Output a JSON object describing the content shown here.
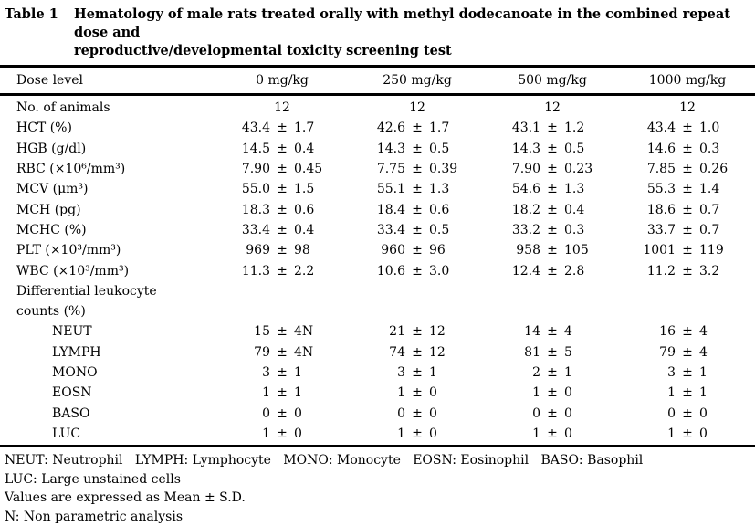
{
  "title": {
    "label": "Table 1",
    "line1": "Hematology of male rats treated orally with methyl dodecanoate in the combined repeat dose and",
    "line2": "reproductive/developmental toxicity screening test"
  },
  "table": {
    "pm_symbol": "±",
    "header": {
      "label": "Dose level",
      "columns": [
        "0 mg/kg",
        "250 mg/kg",
        "500 mg/kg",
        "1000 mg/kg"
      ]
    },
    "rows": [
      {
        "label": "No. of animals",
        "indent": 0,
        "type": "single",
        "values": [
          "12",
          "12",
          "12",
          "12"
        ]
      },
      {
        "label": "HCT (%)",
        "indent": 0,
        "type": "pm",
        "values": [
          [
            "43.4",
            "1.7"
          ],
          [
            "42.6",
            "1.7"
          ],
          [
            "43.1",
            "1.2"
          ],
          [
            "43.4",
            "1.0"
          ]
        ]
      },
      {
        "label": "HGB (g/dl)",
        "indent": 0,
        "type": "pm",
        "values": [
          [
            "14.5",
            "0.4"
          ],
          [
            "14.3",
            "0.5"
          ],
          [
            "14.3",
            "0.5"
          ],
          [
            "14.6",
            "0.3"
          ]
        ]
      },
      {
        "label": "RBC (×10⁶/mm³)",
        "indent": 0,
        "type": "pm",
        "values": [
          [
            "7.90",
            "0.45"
          ],
          [
            "7.75",
            "0.39"
          ],
          [
            "7.90",
            "0.23"
          ],
          [
            "7.85",
            "0.26"
          ]
        ]
      },
      {
        "label": "MCV (μm³)",
        "indent": 0,
        "type": "pm",
        "values": [
          [
            "55.0",
            "1.5"
          ],
          [
            "55.1",
            "1.3"
          ],
          [
            "54.6",
            "1.3"
          ],
          [
            "55.3",
            "1.4"
          ]
        ]
      },
      {
        "label": "MCH (pg)",
        "indent": 0,
        "type": "pm",
        "values": [
          [
            "18.3",
            "0.6"
          ],
          [
            "18.4",
            "0.6"
          ],
          [
            "18.2",
            "0.4"
          ],
          [
            "18.6",
            "0.7"
          ]
        ]
      },
      {
        "label": "MCHC (%)",
        "indent": 0,
        "type": "pm",
        "values": [
          [
            "33.4",
            "0.4"
          ],
          [
            "33.4",
            "0.5"
          ],
          [
            "33.2",
            "0.3"
          ],
          [
            "33.7",
            "0.7"
          ]
        ]
      },
      {
        "label": "PLT (×10³/mm³)",
        "indent": 0,
        "type": "pm",
        "values": [
          [
            "969",
            "98"
          ],
          [
            "960",
            "96"
          ],
          [
            "958",
            "105"
          ],
          [
            "1001",
            "119"
          ]
        ]
      },
      {
        "label": "WBC (×10³/mm³)",
        "indent": 0,
        "type": "pm",
        "values": [
          [
            "11.3",
            "2.2"
          ],
          [
            "10.6",
            "3.0"
          ],
          [
            "12.4",
            "2.8"
          ],
          [
            "11.2",
            "3.2"
          ]
        ]
      },
      {
        "label": "Differential leukocyte",
        "indent": 0,
        "type": "label-only",
        "values": []
      },
      {
        "label": "counts (%)",
        "indent": 0,
        "type": "label-only",
        "values": []
      },
      {
        "label": "NEUT",
        "indent": 1,
        "type": "pm",
        "values": [
          [
            "15",
            "4N"
          ],
          [
            "21",
            "12"
          ],
          [
            "14",
            "4"
          ],
          [
            "16",
            "4"
          ]
        ]
      },
      {
        "label": "LYMPH",
        "indent": 1,
        "type": "pm",
        "values": [
          [
            "79",
            "4N"
          ],
          [
            "74",
            "12"
          ],
          [
            "81",
            "5"
          ],
          [
            "79",
            "4"
          ]
        ]
      },
      {
        "label": "MONO",
        "indent": 1,
        "type": "pm",
        "values": [
          [
            "3",
            "1"
          ],
          [
            "3",
            "1"
          ],
          [
            "2",
            "1"
          ],
          [
            "3",
            "1"
          ]
        ]
      },
      {
        "label": "EOSN",
        "indent": 1,
        "type": "pm",
        "values": [
          [
            "1",
            "1"
          ],
          [
            "1",
            "0"
          ],
          [
            "1",
            "0"
          ],
          [
            "1",
            "1"
          ]
        ]
      },
      {
        "label": "BASO",
        "indent": 1,
        "type": "pm",
        "values": [
          [
            "0",
            "0"
          ],
          [
            "0",
            "0"
          ],
          [
            "0",
            "0"
          ],
          [
            "0",
            "0"
          ]
        ]
      },
      {
        "label": "LUC",
        "indent": 1,
        "type": "pm",
        "values": [
          [
            "1",
            "0"
          ],
          [
            "1",
            "0"
          ],
          [
            "1",
            "0"
          ],
          [
            "1",
            "0"
          ]
        ]
      }
    ]
  },
  "footnotes": [
    "NEUT: Neutrophil   LYMPH: Lymphocyte   MONO: Monocyte   EOSN: Eosinophil   BASO: Basophil",
    "LUC: Large unstained cells",
    "Values are expressed as Mean ± S.D.",
    "N: Non parametric analysis"
  ]
}
